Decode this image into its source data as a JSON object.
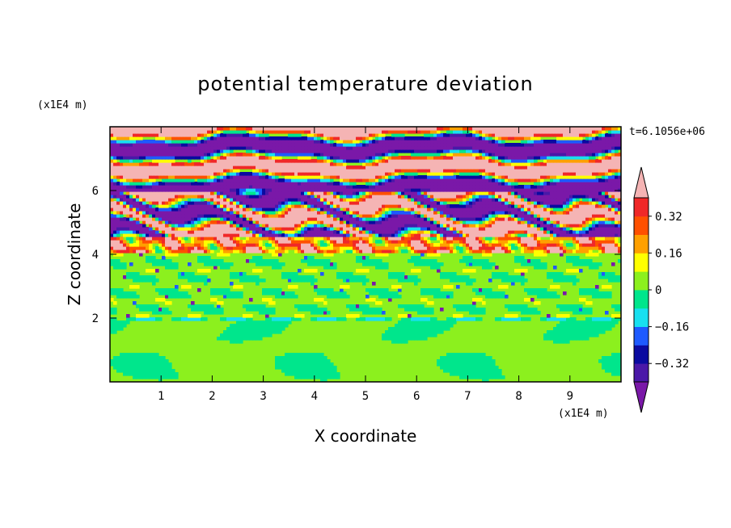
{
  "chart_data": {
    "type": "heatmap",
    "title": "potential temperature deviation",
    "xlabel": "X coordinate",
    "ylabel": "Z coordinate",
    "x_unit": "(x1E4 m)",
    "y_unit": "(x1E4 m)",
    "time_label": "t=6.1056e+06",
    "xlim": [
      0,
      10
    ],
    "ylim": [
      0,
      8
    ],
    "x_ticks": [
      1,
      2,
      3,
      4,
      5,
      6,
      7,
      8,
      9
    ],
    "y_ticks": [
      2,
      4,
      6
    ],
    "grid": false,
    "legend": "colorbar right",
    "colorbar": {
      "levels": [
        -0.48,
        -0.4,
        -0.32,
        -0.24,
        -0.16,
        -0.08,
        0,
        0.08,
        0.16,
        0.24,
        0.32,
        0.4,
        0.48
      ],
      "tick_labels": [
        "0.32",
        "0.16",
        "0",
        "−0.16",
        "−0.32"
      ],
      "tick_values": [
        0.32,
        0.16,
        0,
        -0.16,
        -0.32
      ],
      "colors": [
        "#7a18a8",
        "#4a18a8",
        "#0a0aa0",
        "#1e5aff",
        "#18e0f0",
        "#00e68c",
        "#8cf01e",
        "#ffff00",
        "#ffa000",
        "#ff5000",
        "#f02828",
        "#f5b4b4"
      ]
    },
    "bands": [
      {
        "z_range": [
          0,
          2.0
        ],
        "pattern": "dominant light green with green eddies (~0) at z 0.5-1.7"
      },
      {
        "z_range": [
          2.0,
          4.1
        ],
        "pattern": "mostly light green, scattered small dark-blue/purple spots"
      },
      {
        "z_range": [
          4.1,
          4.6
        ],
        "pattern": "orange-red, yellow and pink band (~+0.2 to +0.4)"
      },
      {
        "z_range": [
          4.6,
          6.1
        ],
        "pattern": "mixed blue, dark purple and pink filaments"
      },
      {
        "z_range": [
          6.1,
          8.0
        ],
        "pattern": "alternating wide purple (<-0.4) and pink (>0.4) layers"
      }
    ]
  },
  "colors": {
    "background": "#ffffff",
    "frame": "#000000"
  }
}
